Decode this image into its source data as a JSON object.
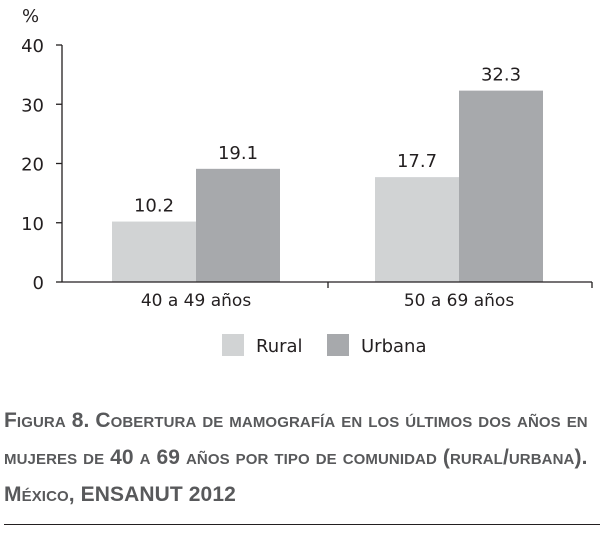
{
  "chart_data": {
    "type": "bar",
    "y_unit_label": "%",
    "categories": [
      "40 a 49 años",
      "50 a 69 años"
    ],
    "series": [
      {
        "name": "Rural",
        "values": [
          10.2,
          17.7
        ],
        "value_labels": [
          "10.2",
          "17.7"
        ],
        "color": "#d1d3d4"
      },
      {
        "name": "Urbana",
        "values": [
          19.1,
          32.3
        ],
        "value_labels": [
          "19.1",
          "32.3"
        ],
        "color": "#a7a9ac"
      }
    ],
    "y_ticks": [
      0,
      10,
      20,
      30,
      40
    ],
    "ylim": [
      0,
      40
    ],
    "grid": false,
    "legend_position": "bottom-center"
  },
  "caption": {
    "text": "Figura 8. Cobertura de mamografía en los últimos dos años en mujeres de 40 a 69 años por tipo de comunidad (rural/urbana). México, ENSANUT 2012"
  }
}
